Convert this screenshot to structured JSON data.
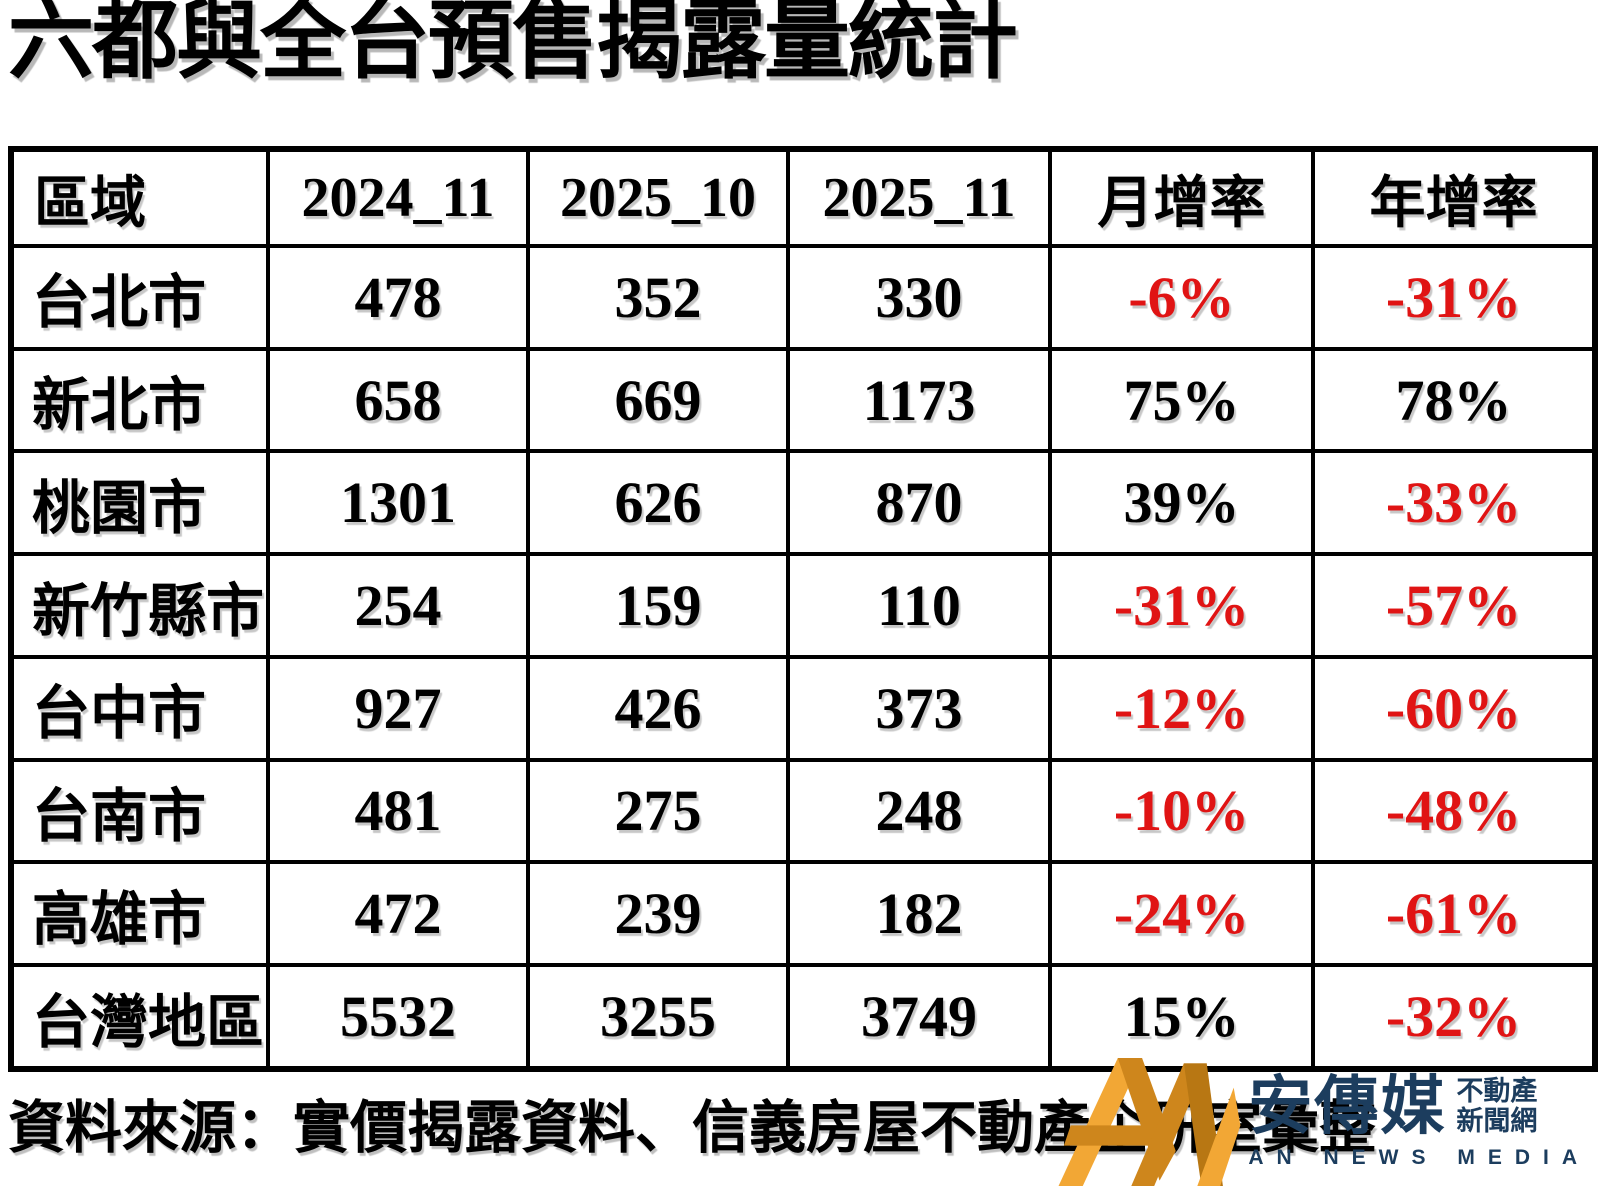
{
  "title": "六都與全台預售揭露量統計",
  "table": {
    "headers": [
      "區域",
      "2024_11",
      "2025_10",
      "2025_11",
      "月增率",
      "年增率"
    ],
    "rows": [
      {
        "region": "台北市",
        "v2024_11": "478",
        "v2025_10": "352",
        "v2025_11": "330",
        "mom": "-6%",
        "yoy": "-31%"
      },
      {
        "region": "新北市",
        "v2024_11": "658",
        "v2025_10": "669",
        "v2025_11": "1173",
        "mom": "75%",
        "yoy": "78%"
      },
      {
        "region": "桃園市",
        "v2024_11": "1301",
        "v2025_10": "626",
        "v2025_11": "870",
        "mom": "39%",
        "yoy": "-33%"
      },
      {
        "region": "新竹縣市",
        "v2024_11": "254",
        "v2025_10": "159",
        "v2025_11": "110",
        "mom": "-31%",
        "yoy": "-57%"
      },
      {
        "region": "台中市",
        "v2024_11": "927",
        "v2025_10": "426",
        "v2025_11": "373",
        "mom": "-12%",
        "yoy": "-60%"
      },
      {
        "region": "台南市",
        "v2024_11": "481",
        "v2025_10": "275",
        "v2025_11": "248",
        "mom": "-10%",
        "yoy": "-48%"
      },
      {
        "region": "高雄市",
        "v2024_11": "472",
        "v2025_10": "239",
        "v2025_11": "182",
        "mom": "-24%",
        "yoy": "-61%"
      },
      {
        "region": "台灣地區",
        "v2024_11": "5532",
        "v2025_10": "3255",
        "v2025_11": "3749",
        "mom": "15%",
        "yoy": "-32%"
      }
    ]
  },
  "footer": {
    "source": "資料來源：實價揭露資料、信義房屋不動產企研室彙整"
  },
  "logo": {
    "brand": "安傳媒",
    "tag_line1": "不動產",
    "tag_line2": "新聞網",
    "subtitle": "AN NEWS MEDIA",
    "monogram_icon": "an-monogram-icon"
  },
  "colors": {
    "negative_red": "#e01414",
    "positive_black": "#000000",
    "brand_navy": "#1c3d5e",
    "gold_light": "#F2A735",
    "gold_dark": "#CE861C",
    "gold_darker": "#B87713"
  },
  "chart_data": {
    "type": "table",
    "title": "六都與全台預售揭露量統計",
    "columns": [
      "區域",
      "2024_11",
      "2025_10",
      "2025_11",
      "月增率",
      "年增率"
    ],
    "rows": [
      [
        "台北市",
        478,
        352,
        330,
        "-6%",
        "-31%"
      ],
      [
        "新北市",
        658,
        669,
        1173,
        "75%",
        "78%"
      ],
      [
        "桃園市",
        1301,
        626,
        870,
        "39%",
        "-33%"
      ],
      [
        "新竹縣市",
        254,
        159,
        110,
        "-31%",
        "-57%"
      ],
      [
        "台中市",
        927,
        426,
        373,
        "-12%",
        "-60%"
      ],
      [
        "台南市",
        481,
        275,
        248,
        "-10%",
        "-48%"
      ],
      [
        "高雄市",
        472,
        239,
        182,
        "-24%",
        "-61%"
      ],
      [
        "台灣地區",
        5532,
        3255,
        3749,
        "15%",
        "-32%"
      ]
    ],
    "notes": "negative percentages rendered in red, positive in black",
    "source": "資料來源：實價揭露資料、信義房屋不動產企研室彙整"
  }
}
